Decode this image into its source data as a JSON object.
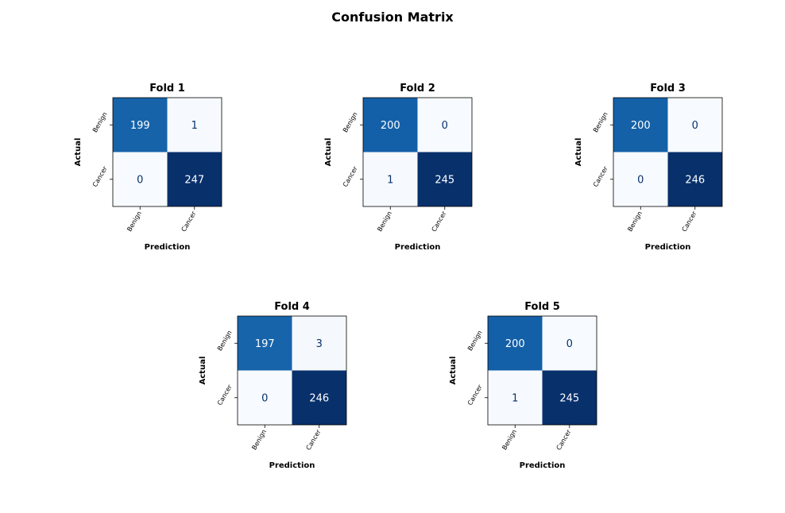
{
  "figure_title": "Confusion Matrix",
  "colors": {
    "colormap": "Blues",
    "light_text": "#ffffff",
    "dark_text": "#08306b"
  },
  "chart_data": [
    {
      "type": "heatmap",
      "title": "Fold 1",
      "xlabel": "Prediction",
      "ylabel": "Actual",
      "x_tick_labels": [
        "Benign",
        "Cancer"
      ],
      "y_tick_labels": [
        "Benign",
        "Cancer"
      ],
      "matrix": [
        [
          199,
          1
        ],
        [
          0,
          247
        ]
      ]
    },
    {
      "type": "heatmap",
      "title": "Fold 2",
      "xlabel": "Prediction",
      "ylabel": "Actual",
      "x_tick_labels": [
        "Benign",
        "Cancer"
      ],
      "y_tick_labels": [
        "Benign",
        "Cancer"
      ],
      "matrix": [
        [
          200,
          0
        ],
        [
          1,
          245
        ]
      ]
    },
    {
      "type": "heatmap",
      "title": "Fold 3",
      "xlabel": "Prediction",
      "ylabel": "Actual",
      "x_tick_labels": [
        "Benign",
        "Cancer"
      ],
      "y_tick_labels": [
        "Benign",
        "Cancer"
      ],
      "matrix": [
        [
          200,
          0
        ],
        [
          0,
          246
        ]
      ]
    },
    {
      "type": "heatmap",
      "title": "Fold 4",
      "xlabel": "Prediction",
      "ylabel": "Actual",
      "x_tick_labels": [
        "Benign",
        "Cancer"
      ],
      "y_tick_labels": [
        "Benign",
        "Cancer"
      ],
      "matrix": [
        [
          197,
          3
        ],
        [
          0,
          246
        ]
      ]
    },
    {
      "type": "heatmap",
      "title": "Fold 5",
      "xlabel": "Prediction",
      "ylabel": "Actual",
      "x_tick_labels": [
        "Benign",
        "Cancer"
      ],
      "y_tick_labels": [
        "Benign",
        "Cancer"
      ],
      "matrix": [
        [
          200,
          0
        ],
        [
          1,
          245
        ]
      ]
    }
  ]
}
